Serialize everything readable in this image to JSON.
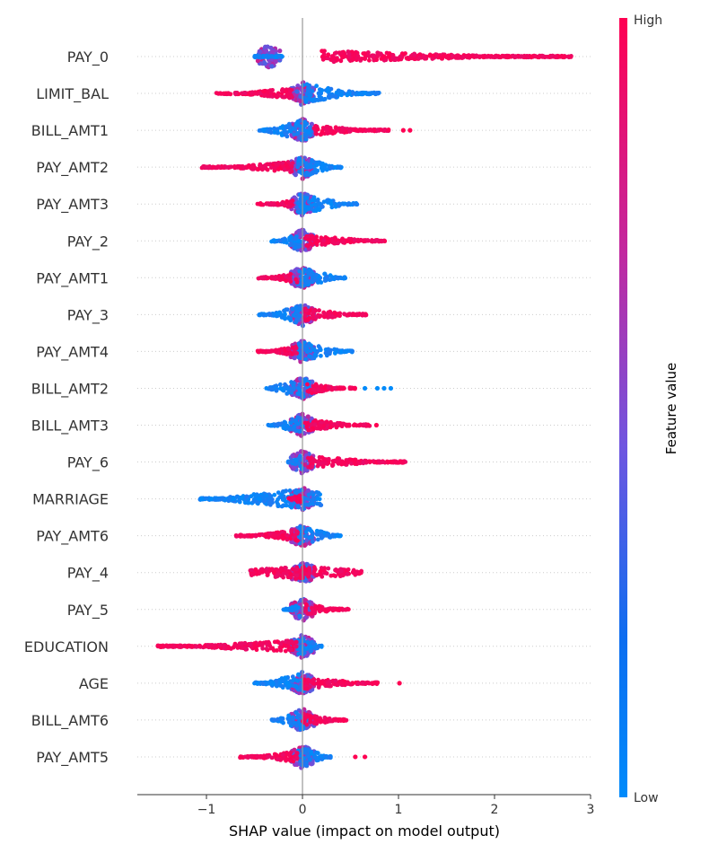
{
  "chart_data": {
    "type": "scatter",
    "subtype": "shap-beeswarm",
    "xlabel": "SHAP value (impact on model output)",
    "xlim": [
      -1.72,
      3.0
    ],
    "xticks": [
      -1,
      0,
      1,
      2,
      3
    ],
    "xtick_labels": [
      "−1",
      "0",
      "1",
      "2",
      "3"
    ],
    "zero_line": 0,
    "colorbar": {
      "title": "Feature value",
      "high_label": "High",
      "low_label": "Low",
      "high_color": "#ff0052",
      "low_color": "#008bfb"
    },
    "features": [
      {
        "name": "PAY_0",
        "min": -0.5,
        "max": 2.8,
        "low_side": "left",
        "lo_blue": -0.5,
        "hi_blue": -0.2,
        "lo_red": 0.2,
        "hi_red": 2.8,
        "outliers": [
          [
            0.85,
            "red"
          ],
          [
            0.9,
            "red"
          ]
        ]
      },
      {
        "name": "LIMIT_BAL",
        "min": -0.9,
        "max": 0.8,
        "low_side": "right",
        "lo_red": -0.9,
        "hi_red": -0.1,
        "lo_blue": 0.0,
        "hi_blue": 0.8,
        "outliers": []
      },
      {
        "name": "BILL_AMT1",
        "min": -0.45,
        "max": 1.12,
        "low_side": "left",
        "lo_blue": -0.45,
        "hi_blue": 0.1,
        "lo_red": 0.1,
        "hi_red": 0.9,
        "outliers": [
          [
            1.05,
            "red"
          ],
          [
            1.12,
            "red"
          ]
        ]
      },
      {
        "name": "PAY_AMT2",
        "min": -1.05,
        "max": 0.42,
        "low_side": "right",
        "lo_red": -1.05,
        "hi_red": -0.1,
        "lo_blue": -0.05,
        "hi_blue": 0.42,
        "outliers": []
      },
      {
        "name": "PAY_AMT3",
        "min": -0.47,
        "max": 0.57,
        "low_side": "right",
        "lo_red": -0.47,
        "hi_red": -0.1,
        "lo_blue": -0.05,
        "hi_blue": 0.57,
        "outliers": []
      },
      {
        "name": "PAY_2",
        "min": -0.33,
        "max": 0.87,
        "low_side": "left",
        "lo_blue": -0.33,
        "hi_blue": -0.02,
        "lo_red": 0.02,
        "hi_red": 0.87,
        "outliers": []
      },
      {
        "name": "PAY_AMT1",
        "min": -0.47,
        "max": 0.45,
        "low_side": "right",
        "lo_red": -0.47,
        "hi_red": -0.05,
        "lo_blue": -0.05,
        "hi_blue": 0.45,
        "outliers": []
      },
      {
        "name": "PAY_3",
        "min": -0.47,
        "max": 0.67,
        "low_side": "left",
        "lo_blue": -0.47,
        "hi_blue": -0.02,
        "lo_red": 0.02,
        "hi_red": 0.67,
        "outliers": []
      },
      {
        "name": "PAY_AMT4",
        "min": -0.47,
        "max": 0.52,
        "low_side": "right",
        "lo_red": -0.47,
        "hi_red": -0.05,
        "lo_blue": -0.05,
        "hi_blue": 0.52,
        "outliers": []
      },
      {
        "name": "BILL_AMT2",
        "min": -0.38,
        "max": 0.92,
        "low_side": "left",
        "lo_blue": -0.38,
        "hi_blue": 0.1,
        "lo_red": 0.05,
        "hi_red": 0.55,
        "outliers": [
          [
            0.65,
            "blue"
          ],
          [
            0.78,
            "blue"
          ],
          [
            0.85,
            "blue"
          ],
          [
            0.92,
            "blue"
          ]
        ]
      },
      {
        "name": "BILL_AMT3",
        "min": -0.37,
        "max": 0.77,
        "low_side": "left",
        "lo_blue": -0.37,
        "hi_blue": 0.0,
        "lo_red": 0.03,
        "hi_red": 0.7,
        "outliers": [
          [
            0.77,
            "red"
          ]
        ]
      },
      {
        "name": "PAY_6",
        "min": -0.15,
        "max": 1.08,
        "low_side": "left",
        "lo_blue": -0.15,
        "hi_blue": 0.0,
        "lo_red": 0.05,
        "hi_red": 1.08,
        "outliers": []
      },
      {
        "name": "MARRIAGE",
        "min": -1.07,
        "max": 0.2,
        "low_side": "both",
        "lo_blue": -1.07,
        "hi_blue": 0.2,
        "lo_red": -0.15,
        "hi_red": 0.0,
        "outliers": [
          [
            -1.05,
            "blue"
          ],
          [
            -0.95,
            "blue"
          ],
          [
            -0.72,
            "blue"
          ],
          [
            -0.45,
            "blue"
          ]
        ]
      },
      {
        "name": "PAY_AMT6",
        "min": -0.7,
        "max": 0.4,
        "low_side": "right",
        "lo_red": -0.7,
        "hi_red": -0.05,
        "lo_blue": -0.05,
        "hi_blue": 0.4,
        "outliers": []
      },
      {
        "name": "PAY_4",
        "min": -0.55,
        "max": 0.63,
        "low_side": "left",
        "lo_blue": -0.05,
        "hi_blue": 0.05,
        "lo_red": -0.55,
        "hi_red": 0.63,
        "outliers": []
      },
      {
        "name": "PAY_5",
        "min": -0.2,
        "max": 0.48,
        "low_side": "left",
        "lo_blue": -0.2,
        "hi_blue": -0.02,
        "lo_red": 0.02,
        "hi_red": 0.48,
        "outliers": []
      },
      {
        "name": "EDUCATION",
        "min": -1.52,
        "max": 0.28,
        "low_side": "right",
        "lo_red": -1.52,
        "hi_red": -0.05,
        "lo_blue": -0.05,
        "hi_blue": 0.2,
        "outliers": []
      },
      {
        "name": "AGE",
        "min": -0.5,
        "max": 1.01,
        "low_side": "left",
        "lo_blue": -0.5,
        "hi_blue": 0.05,
        "lo_red": 0.0,
        "hi_red": 0.8,
        "outliers": [
          [
            1.01,
            "red"
          ]
        ]
      },
      {
        "name": "BILL_AMT6",
        "min": -0.32,
        "max": 0.46,
        "low_side": "left",
        "lo_blue": -0.32,
        "hi_blue": 0.05,
        "lo_red": 0.0,
        "hi_red": 0.46,
        "outliers": []
      },
      {
        "name": "PAY_AMT5",
        "min": -0.65,
        "max": 0.65,
        "low_side": "right",
        "lo_red": -0.65,
        "hi_red": -0.05,
        "lo_blue": -0.05,
        "hi_blue": 0.3,
        "outliers": [
          [
            0.55,
            "red"
          ],
          [
            0.65,
            "red"
          ]
        ]
      }
    ]
  }
}
